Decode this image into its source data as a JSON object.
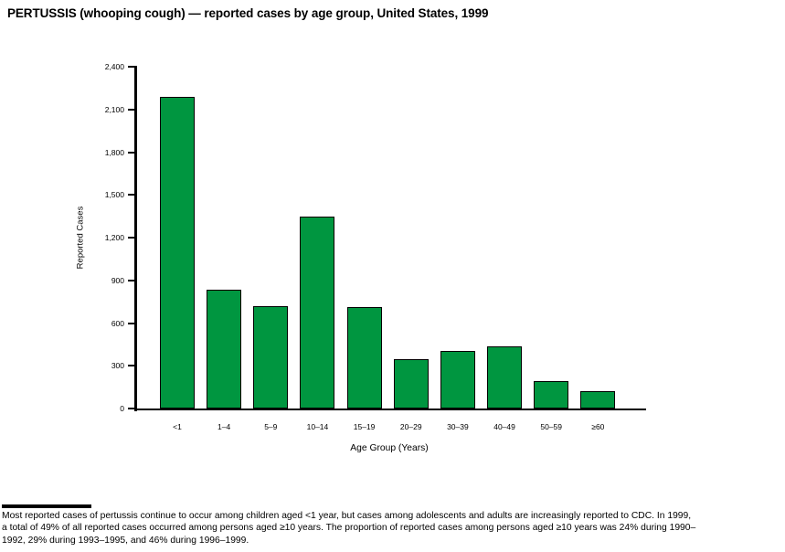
{
  "title": "PERTUSSIS (whooping cough) — reported cases by age group, United States, 1999",
  "chart_data": {
    "type": "bar",
    "title": "PERTUSSIS (whooping cough) — reported cases by age group, United States, 1999",
    "xlabel": "Age Group (Years)",
    "ylabel": "Reported Cases",
    "categories": [
      "<1",
      "1–4",
      "5–9",
      "10–14",
      "15–19",
      "20–29",
      "30–39",
      "40–49",
      "50–59",
      "≥60"
    ],
    "values": [
      2190,
      835,
      720,
      1345,
      715,
      345,
      405,
      435,
      195,
      125
    ],
    "ylim": [
      0,
      2400
    ],
    "ytick_values": [
      0,
      300,
      600,
      900,
      1200,
      1500,
      1800,
      2100,
      2400
    ],
    "ytick_labels": [
      "0",
      "300",
      "600",
      "900",
      "1,200",
      "1,500",
      "1,800",
      "2,100",
      "2,400"
    ],
    "grid": false,
    "legend": "none",
    "bar_color": "#009640",
    "bar_border_color": "#000000"
  },
  "footnote": {
    "lines": [
      "Most reported cases of pertussis continue to occur among children aged <1 year, but cases among adolescents and adults are increasingly reported to CDC. In 1999,",
      "a total of 49% of all reported cases occurred among persons aged ≥10 years. The proportion of reported cases among persons aged ≥10 years was 24% during 1990–",
      "1992, 29% during 1993–1995, and 46% during 1996–1999."
    ]
  }
}
